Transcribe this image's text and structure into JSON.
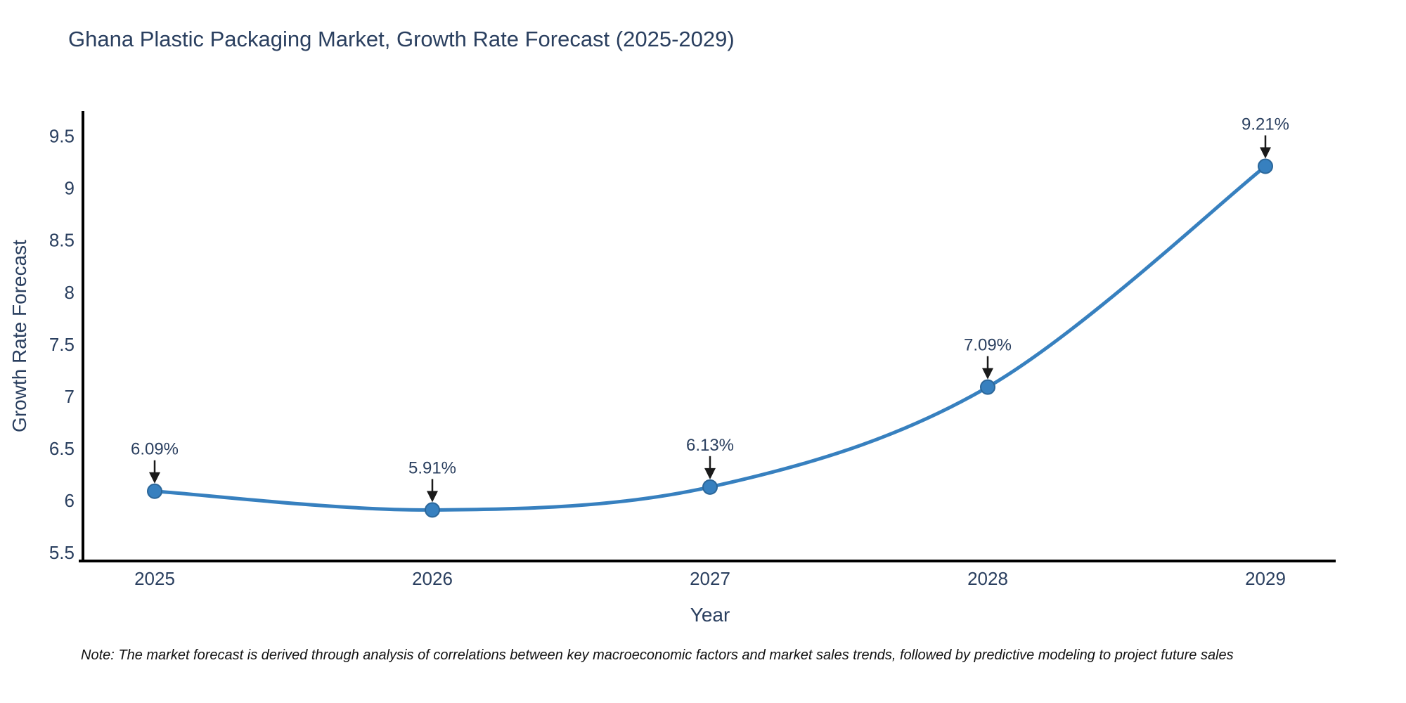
{
  "title": "Ghana Plastic Packaging Market, Growth Rate Forecast (2025-2029)",
  "note": "Note: The market forecast is derived through analysis of correlations between key macroeconomic factors and market sales trends, followed by predictive modeling to project future sales",
  "chart_data": {
    "type": "line",
    "title": "Ghana Plastic Packaging Market, Growth Rate Forecast (2025-2029)",
    "xlabel": "Year",
    "ylabel": "Growth Rate Forecast",
    "categories": [
      "2025",
      "2026",
      "2027",
      "2028",
      "2029"
    ],
    "values": [
      6.09,
      5.91,
      6.13,
      7.09,
      9.21
    ],
    "point_labels": [
      "6.09%",
      "5.91%",
      "6.13%",
      "7.09%",
      "9.21%"
    ],
    "ytick_values": [
      5.5,
      6,
      6.5,
      7,
      7.5,
      8,
      8.5,
      9,
      9.5
    ],
    "ytick_labels": [
      "5.5",
      "6",
      "6.5",
      "7",
      "7.5",
      "8",
      "8.5",
      "9",
      "9.5"
    ],
    "ylim": [
      5.42,
      9.74
    ],
    "line_shape": "spline",
    "grid": false,
    "legend_position": "none",
    "colors": {
      "line": "#3780bf",
      "marker": "#3780bf",
      "marker_edge": "#2b6699",
      "axis": "#000000",
      "tick_text": "#2a3f5f",
      "annotation_text": "#2a3f5f",
      "arrow": "#1a1a1a",
      "background": "#ffffff"
    }
  }
}
